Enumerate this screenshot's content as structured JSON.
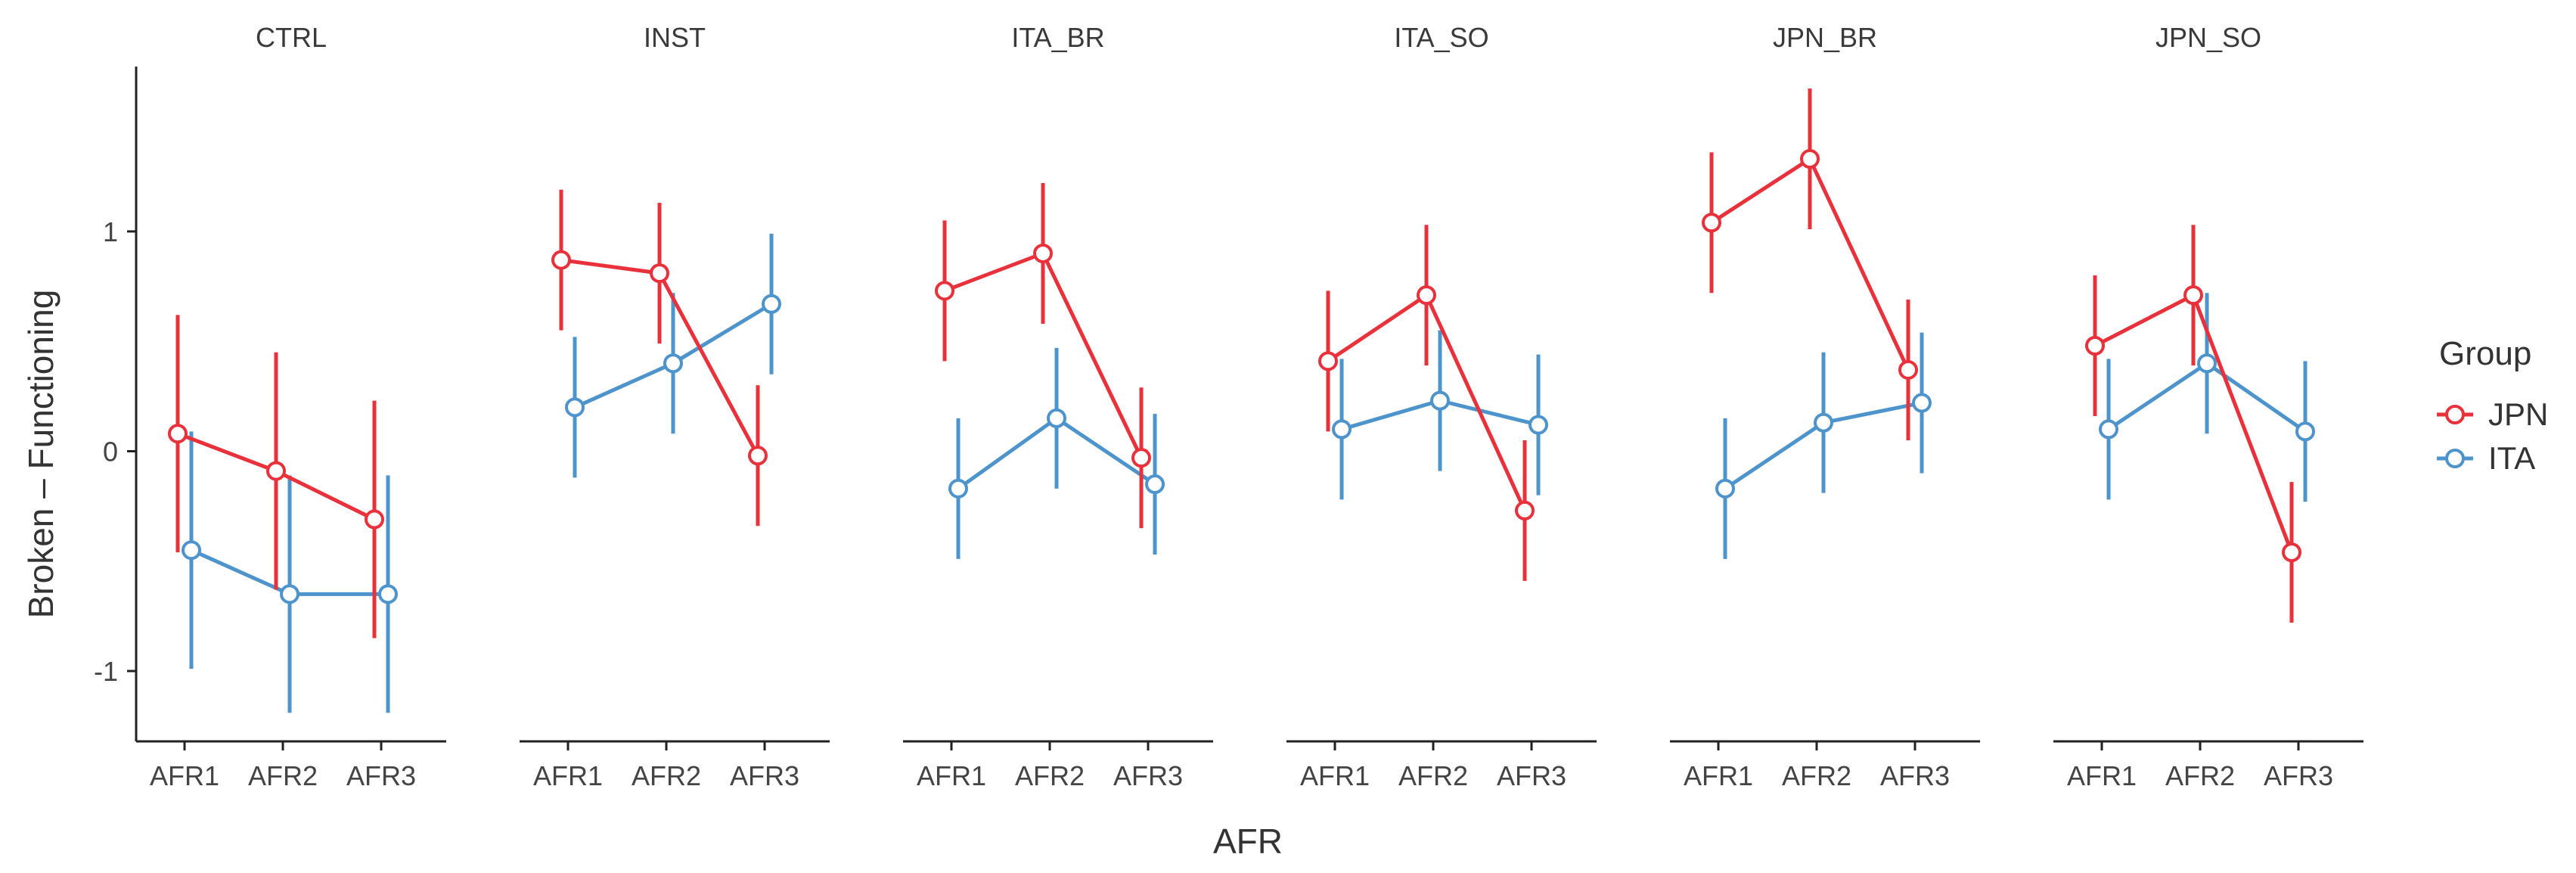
{
  "chart_data": {
    "type": "line",
    "title": "",
    "xlabel": "AFR",
    "ylabel": "Broken – Functioning",
    "ylim": [
      -1.32,
      1.75
    ],
    "yticks": [
      -1,
      0,
      1
    ],
    "ytick_labels": [
      "-1",
      "0",
      "1"
    ],
    "categories": [
      "AFR1",
      "AFR2",
      "AFR3"
    ],
    "facets": [
      "CTRL",
      "INST",
      "ITA_BR",
      "ITA_SO",
      "JPN_BR",
      "JPN_SO"
    ],
    "legend": {
      "title": "Group",
      "position": "right"
    },
    "series": [
      {
        "name": "JPN",
        "color": "#e8313a",
        "panels": {
          "CTRL": {
            "values": [
              0.08,
              -0.09,
              -0.31
            ],
            "lower": [
              -0.46,
              -0.63,
              -0.85
            ],
            "upper": [
              0.62,
              0.45,
              0.23
            ]
          },
          "INST": {
            "values": [
              0.87,
              0.81,
              -0.02
            ],
            "lower": [
              0.55,
              0.49,
              -0.34
            ],
            "upper": [
              1.19,
              1.13,
              0.3
            ]
          },
          "ITA_BR": {
            "values": [
              0.73,
              0.9,
              -0.03
            ],
            "lower": [
              0.41,
              0.58,
              -0.35
            ],
            "upper": [
              1.05,
              1.22,
              0.29
            ]
          },
          "ITA_SO": {
            "values": [
              0.41,
              0.71,
              -0.27
            ],
            "lower": [
              0.09,
              0.39,
              -0.59
            ],
            "upper": [
              0.73,
              1.03,
              0.05
            ]
          },
          "JPN_BR": {
            "values": [
              1.04,
              1.33,
              0.37
            ],
            "lower": [
              0.72,
              1.01,
              0.05
            ],
            "upper": [
              1.36,
              1.65,
              0.69
            ]
          },
          "JPN_SO": {
            "values": [
              0.48,
              0.71,
              -0.46
            ],
            "lower": [
              0.16,
              0.39,
              -0.78
            ],
            "upper": [
              0.8,
              1.03,
              -0.14
            ]
          }
        }
      },
      {
        "name": "ITA",
        "color": "#4e94cc",
        "panels": {
          "CTRL": {
            "values": [
              -0.45,
              -0.65,
              -0.65
            ],
            "lower": [
              -0.99,
              -1.19,
              -1.19
            ],
            "upper": [
              0.09,
              -0.11,
              -0.11
            ]
          },
          "INST": {
            "values": [
              0.2,
              0.4,
              0.67
            ],
            "lower": [
              -0.12,
              0.08,
              0.35
            ],
            "upper": [
              0.52,
              0.72,
              0.99
            ]
          },
          "ITA_BR": {
            "values": [
              -0.17,
              0.15,
              -0.15
            ],
            "lower": [
              -0.49,
              -0.17,
              -0.47
            ],
            "upper": [
              0.15,
              0.47,
              0.17
            ]
          },
          "ITA_SO": {
            "values": [
              0.1,
              0.23,
              0.12
            ],
            "lower": [
              -0.22,
              -0.09,
              -0.2
            ],
            "upper": [
              0.42,
              0.55,
              0.44
            ]
          },
          "JPN_BR": {
            "values": [
              -0.17,
              0.13,
              0.22
            ],
            "lower": [
              -0.49,
              -0.19,
              -0.1
            ],
            "upper": [
              0.15,
              0.45,
              0.54
            ]
          },
          "JPN_SO": {
            "values": [
              0.1,
              0.4,
              0.09
            ],
            "lower": [
              -0.22,
              0.08,
              -0.23
            ],
            "upper": [
              0.42,
              0.72,
              0.41
            ]
          }
        }
      }
    ]
  }
}
